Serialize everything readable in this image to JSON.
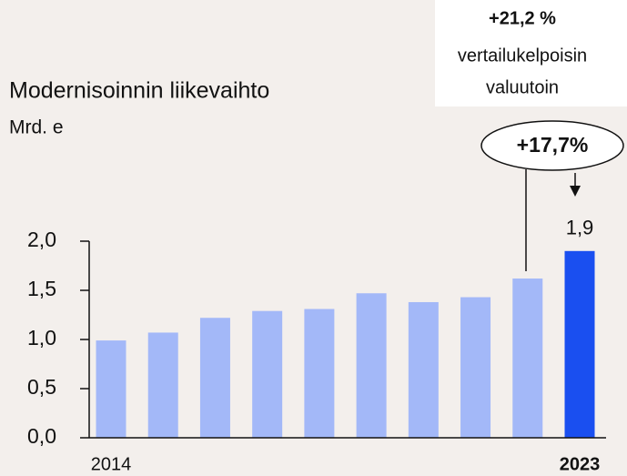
{
  "chart_data": {
    "type": "bar",
    "title": "Modernisoinnin liikevaihto",
    "subtitle": "Mrd. e",
    "categories": [
      "2014",
      null,
      null,
      null,
      null,
      null,
      null,
      null,
      null,
      "2023"
    ],
    "values": [
      0.99,
      1.07,
      1.22,
      1.29,
      1.31,
      1.47,
      1.38,
      1.43,
      1.62,
      1.9
    ],
    "value_labels": [
      null,
      null,
      null,
      null,
      null,
      null,
      null,
      null,
      null,
      "1,9"
    ],
    "colors": [
      "#a3b8f8",
      "#a3b8f8",
      "#a3b8f8",
      "#a3b8f8",
      "#a3b8f8",
      "#a3b8f8",
      "#a3b8f8",
      "#a3b8f8",
      "#a3b8f8",
      "#1a4ff0"
    ],
    "ylim": [
      0,
      2.0
    ],
    "yticks": [
      {
        "value": 0,
        "label": "0,0"
      },
      {
        "value": 0.5,
        "label": "0,5"
      },
      {
        "value": 1.0,
        "label": "1,0"
      },
      {
        "value": 1.5,
        "label": "1,5"
      },
      {
        "value": 2.0,
        "label": "2,0"
      }
    ],
    "grid": false,
    "annotations": {
      "growth": "+17,7%",
      "comparable_growth": "+21,2 %",
      "comparable_note": [
        "vertailukelpoisin",
        "valuutoin"
      ]
    }
  }
}
